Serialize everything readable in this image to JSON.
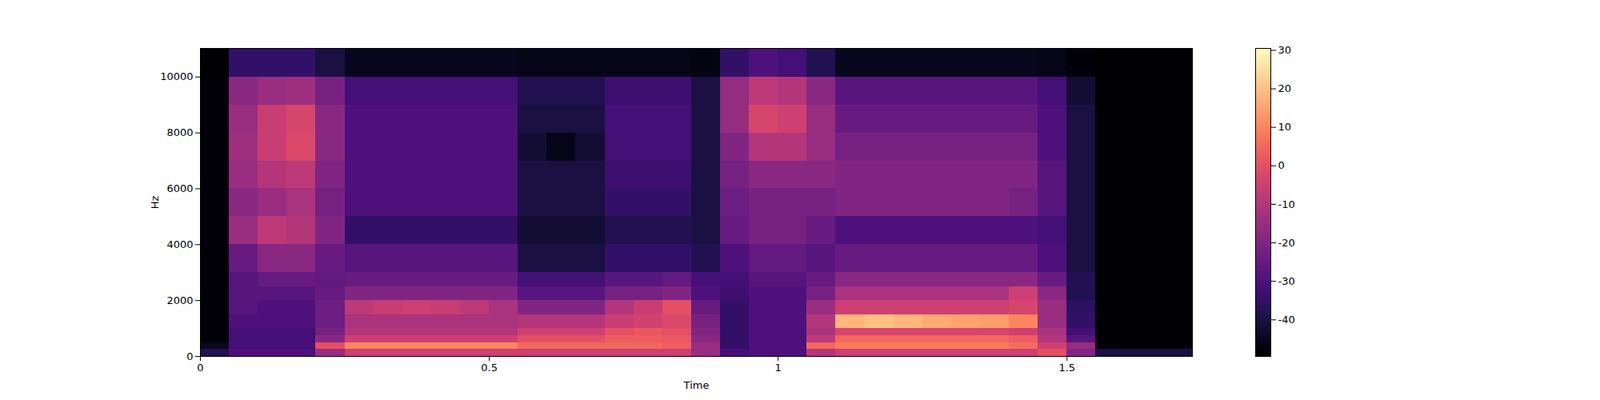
{
  "chart_data": {
    "type": "heatmap",
    "xlabel": "Time",
    "ylabel": "Hz",
    "xlim": [
      0,
      1.717
    ],
    "ylim": [
      0,
      11025
    ],
    "xticks": [
      0,
      0.5,
      1,
      1.5
    ],
    "yticks": [
      0,
      2000,
      4000,
      6000,
      8000,
      10000
    ],
    "time_bins": [
      0,
      0.05,
      0.1,
      0.15,
      0.2,
      0.25,
      0.3,
      0.35,
      0.4,
      0.45,
      0.5,
      0.55,
      0.6,
      0.65,
      0.7,
      0.75,
      0.8,
      0.85,
      0.9,
      0.95,
      1.0,
      1.05,
      1.1,
      1.15,
      1.2,
      1.25,
      1.3,
      1.35,
      1.4,
      1.45,
      1.5,
      1.55,
      1.6,
      1.65,
      1.7,
      1.717
    ],
    "freq_bins": [
      0,
      250,
      500,
      750,
      1000,
      1500,
      2000,
      2500,
      3000,
      4000,
      5000,
      6000,
      7000,
      8000,
      9000,
      10000,
      11025
    ],
    "cells": [
      [
        -38,
        -45,
        -48,
        -48,
        -48,
        -48,
        -48,
        -48,
        -48,
        -48,
        -48,
        -48,
        -48,
        -48,
        -48,
        -49
      ],
      [
        -30,
        -32,
        -32,
        -32,
        -30,
        -28,
        -28,
        -28,
        -25,
        -15,
        -18,
        -15,
        -14,
        -15,
        -18,
        -35
      ],
      [
        -30,
        -32,
        -32,
        -32,
        -30,
        -30,
        -28,
        -25,
        -18,
        -8,
        -15,
        -10,
        -6,
        -6,
        -15,
        -35
      ],
      [
        -30,
        -32,
        -32,
        -32,
        -30,
        -30,
        -28,
        -25,
        -18,
        -10,
        -12,
        -8,
        -2,
        -3,
        -14,
        -35
      ],
      [
        -15,
        0,
        -18,
        -22,
        -24,
        -24,
        -25,
        -26,
        -25,
        -20,
        -22,
        -20,
        -18,
        -18,
        -22,
        -40
      ],
      [
        -5,
        10,
        -5,
        -10,
        -12,
        -8,
        -20,
        -25,
        -28,
        -35,
        -30,
        -30,
        -30,
        -30,
        -32,
        -45
      ],
      [
        -5,
        10,
        -5,
        -10,
        -12,
        -6,
        -20,
        -25,
        -28,
        -35,
        -30,
        -30,
        -30,
        -30,
        -32,
        -45
      ],
      [
        -5,
        10,
        -5,
        -10,
        -12,
        -5,
        -20,
        -25,
        -28,
        -35,
        -30,
        -30,
        -30,
        -30,
        -32,
        -45
      ],
      [
        -5,
        10,
        -5,
        -10,
        -12,
        -6,
        -20,
        -25,
        -28,
        -35,
        -30,
        -30,
        -30,
        -30,
        -32,
        -45
      ],
      [
        -5,
        10,
        -5,
        -10,
        -12,
        -8,
        -20,
        -25,
        -28,
        -35,
        -30,
        -30,
        -30,
        -30,
        -32,
        -45
      ],
      [
        -5,
        10,
        -5,
        -10,
        -12,
        -12,
        -20,
        -25,
        -28,
        -35,
        -30,
        -30,
        -30,
        -30,
        -32,
        -45
      ],
      [
        -5,
        5,
        0,
        -5,
        -10,
        -20,
        -28,
        -32,
        -40,
        -42,
        -40,
        -40,
        -42,
        -40,
        -38,
        -46
      ],
      [
        -5,
        5,
        0,
        -5,
        -10,
        -20,
        -28,
        -32,
        -40,
        -42,
        -40,
        -40,
        -46,
        -40,
        -38,
        -46
      ],
      [
        -5,
        5,
        0,
        -5,
        -10,
        -20,
        -28,
        -32,
        -40,
        -42,
        -40,
        -40,
        -42,
        -40,
        -38,
        -46
      ],
      [
        -5,
        5,
        3,
        0,
        -6,
        -10,
        -22,
        -28,
        -35,
        -38,
        -35,
        -33,
        -32,
        -32,
        -33,
        -46
      ],
      [
        -5,
        5,
        3,
        2,
        -4,
        -6,
        -22,
        -28,
        -35,
        -38,
        -35,
        -33,
        -32,
        -32,
        -33,
        -46
      ],
      [
        -5,
        3,
        2,
        0,
        -2,
        0,
        -20,
        -26,
        -35,
        -38,
        -35,
        -33,
        -32,
        -32,
        -33,
        -46
      ],
      [
        -15,
        -15,
        -18,
        -20,
        -22,
        -25,
        -30,
        -32,
        -38,
        -40,
        -40,
        -40,
        -40,
        -40,
        -40,
        -47
      ],
      [
        -32,
        -35,
        -35,
        -35,
        -35,
        -35,
        -33,
        -32,
        -30,
        -25,
        -24,
        -22,
        -20,
        -16,
        -16,
        -35
      ],
      [
        -30,
        -30,
        -30,
        -30,
        -30,
        -30,
        -30,
        -28,
        -26,
        -22,
        -22,
        -18,
        -10,
        -3,
        -8,
        -30
      ],
      [
        -30,
        -30,
        -30,
        -30,
        -30,
        -30,
        -30,
        -28,
        -26,
        -22,
        -22,
        -18,
        -10,
        -5,
        -10,
        -32
      ],
      [
        -10,
        5,
        -8,
        -12,
        -10,
        -15,
        -22,
        -25,
        -28,
        -25,
        -22,
        -18,
        -15,
        -15,
        -18,
        -38
      ],
      [
        -5,
        8,
        5,
        -3,
        18,
        -5,
        -12,
        -18,
        -25,
        -30,
        -20,
        -20,
        -22,
        -25,
        -28,
        -45
      ],
      [
        -5,
        8,
        5,
        -3,
        20,
        -5,
        -12,
        -18,
        -25,
        -30,
        -20,
        -20,
        -22,
        -25,
        -28,
        -45
      ],
      [
        -5,
        8,
        5,
        -3,
        18,
        -5,
        -12,
        -18,
        -25,
        -30,
        -20,
        -20,
        -22,
        -25,
        -28,
        -45
      ],
      [
        -5,
        8,
        5,
        -3,
        16,
        -5,
        -12,
        -18,
        -25,
        -30,
        -20,
        -20,
        -22,
        -25,
        -28,
        -45
      ],
      [
        -5,
        8,
        5,
        -3,
        15,
        -5,
        -12,
        -18,
        -25,
        -30,
        -20,
        -20,
        -22,
        -25,
        -28,
        -45
      ],
      [
        -5,
        8,
        5,
        -3,
        14,
        -5,
        -12,
        -18,
        -25,
        -30,
        -20,
        -20,
        -22,
        -25,
        -28,
        -45
      ],
      [
        -5,
        6,
        3,
        -5,
        10,
        -3,
        -5,
        -18,
        -25,
        -30,
        -22,
        -20,
        -22,
        -25,
        -28,
        -45
      ],
      [
        0,
        -5,
        -10,
        -12,
        -15,
        -15,
        -18,
        -25,
        -30,
        -32,
        -28,
        -28,
        -30,
        -30,
        -32,
        -46
      ],
      [
        -20,
        -15,
        -28,
        -32,
        -35,
        -36,
        -38,
        -38,
        -40,
        -40,
        -40,
        -40,
        -40,
        -40,
        -42,
        -48
      ],
      [
        -40,
        -48,
        -49,
        -49,
        -49,
        -49,
        -49,
        -49,
        -49,
        -49,
        -49,
        -49,
        -49,
        -49,
        -49,
        -49
      ],
      [
        -40,
        -48,
        -49,
        -49,
        -49,
        -49,
        -49,
        -49,
        -49,
        -49,
        -49,
        -49,
        -49,
        -49,
        -49,
        -49
      ],
      [
        -40,
        -48,
        -49,
        -49,
        -49,
        -49,
        -49,
        -49,
        -49,
        -49,
        -49,
        -49,
        -49,
        -49,
        -49,
        -49
      ],
      [
        -40,
        -48,
        -49,
        -49,
        -49,
        -49,
        -49,
        -49,
        -49,
        -49,
        -49,
        -49,
        -49,
        -49,
        -49,
        -49
      ]
    ],
    "colorbar": {
      "range": [
        -49.5,
        30.5
      ],
      "ticks": [
        -40,
        -30,
        -20,
        -10,
        0,
        10,
        20,
        30
      ]
    },
    "color": "magma"
  }
}
